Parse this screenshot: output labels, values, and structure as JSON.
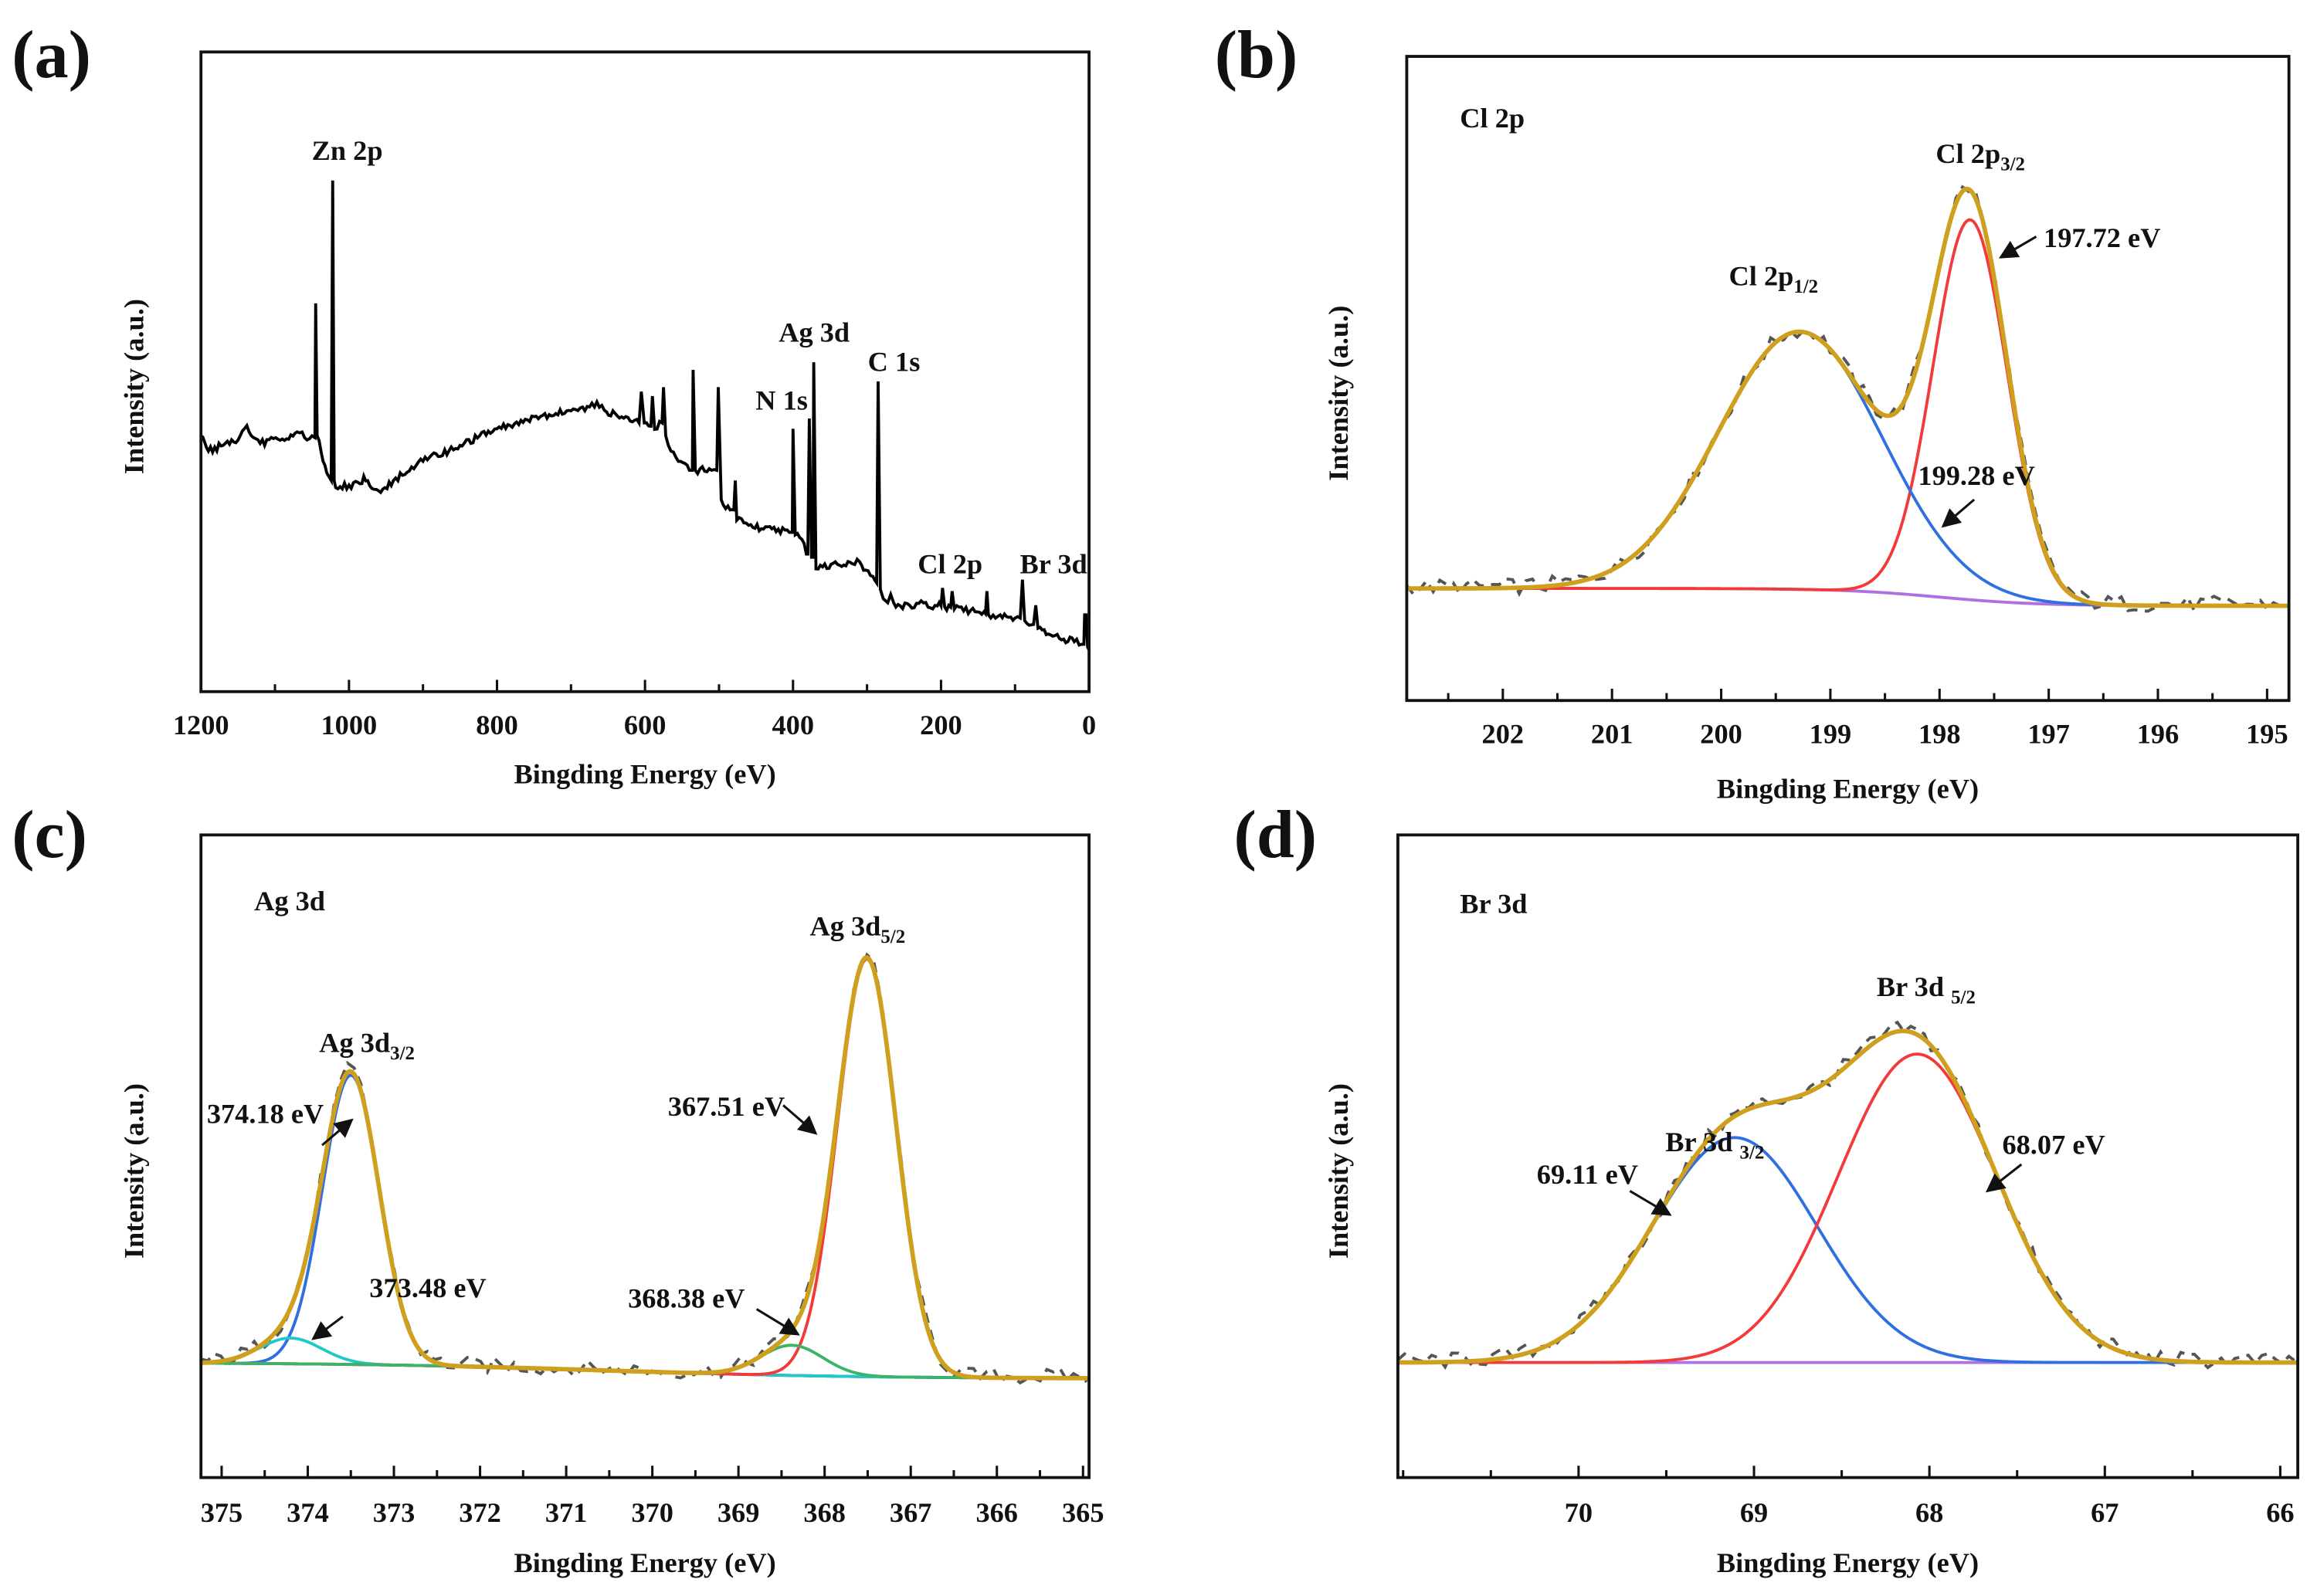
{
  "chart_data": [
    {
      "type": "line",
      "panel_label": "(a)",
      "xlabel": "Bingding Energy (eV)",
      "ylabel": "Intensity (a.u.)",
      "xlim": [
        1200,
        0
      ],
      "ylim": [
        0,
        1
      ],
      "xticks": [
        "1200",
        "1000",
        "800",
        "600",
        "400",
        "200",
        "0"
      ],
      "xtick_values": [
        1200,
        1000,
        800,
        600,
        400,
        200,
        0
      ],
      "annotations": [
        {
          "text": "Zn 2p"
        },
        {
          "text": "Ag 3d"
        },
        {
          "text": "C 1s"
        },
        {
          "text": "N 1s"
        },
        {
          "text": "Cl 2p"
        },
        {
          "text": "Br 3d"
        }
      ],
      "series": [
        {
          "name": "survey",
          "color": "#000000",
          "points": [
            [
              1200,
              0.4
            ],
            [
              1195,
              0.39
            ],
            [
              1190,
              0.376
            ],
            [
              1170,
              0.385
            ],
            [
              1150,
              0.393
            ],
            [
              1138,
              0.416
            ],
            [
              1132,
              0.4
            ],
            [
              1120,
              0.388
            ],
            [
              1090,
              0.395
            ],
            [
              1070,
              0.406
            ],
            [
              1060,
              0.397
            ],
            [
              1050,
              0.4
            ],
            [
              1046,
              0.397
            ],
            [
              1045,
              0.607
            ],
            [
              1043,
              0.4
            ],
            [
              1035,
              0.36
            ],
            [
              1030,
              0.342
            ],
            [
              1024,
              0.33
            ],
            [
              1022,
              0.799
            ],
            [
              1020,
              0.33
            ],
            [
              1018,
              0.319
            ],
            [
              1000,
              0.323
            ],
            [
              985,
              0.325
            ],
            [
              980,
              0.337
            ],
            [
              972,
              0.322
            ],
            [
              960,
              0.314
            ],
            [
              940,
              0.33
            ],
            [
              900,
              0.36
            ],
            [
              850,
              0.385
            ],
            [
              800,
              0.411
            ],
            [
              750,
              0.43
            ],
            [
              700,
              0.439
            ],
            [
              675,
              0.445
            ],
            [
              665,
              0.453
            ],
            [
              655,
              0.44
            ],
            [
              620,
              0.423
            ],
            [
              608,
              0.42
            ],
            [
              605,
              0.469
            ],
            [
              601,
              0.42
            ],
            [
              592,
              0.415
            ],
            [
              590,
              0.462
            ],
            [
              587,
              0.41
            ],
            [
              577,
              0.42
            ],
            [
              575,
              0.476
            ],
            [
              572,
              0.4
            ],
            [
              565,
              0.376
            ],
            [
              555,
              0.36
            ],
            [
              540,
              0.346
            ],
            [
              536,
              0.346
            ],
            [
              535,
              0.503
            ],
            [
              532,
              0.346
            ],
            [
              510,
              0.346
            ],
            [
              503,
              0.346
            ],
            [
              501,
              0.476
            ],
            [
              497,
              0.3
            ],
            [
              485,
              0.284
            ],
            [
              480,
              0.284
            ],
            [
              478,
              0.33
            ],
            [
              476,
              0.268
            ],
            [
              460,
              0.26
            ],
            [
              440,
              0.254
            ],
            [
              420,
              0.254
            ],
            [
              405,
              0.249
            ],
            [
              401,
              0.249
            ],
            [
              400,
              0.411
            ],
            [
              397,
              0.245
            ],
            [
              388,
              0.238
            ],
            [
              382,
              0.215
            ],
            [
              380,
              0.215
            ],
            [
              378,
              0.427
            ],
            [
              375,
              0.21
            ],
            [
              373,
              0.21
            ],
            [
              372,
              0.515
            ],
            [
              369,
              0.192
            ],
            [
              360,
              0.195
            ],
            [
              340,
              0.199
            ],
            [
              320,
              0.2
            ],
            [
              310,
              0.203
            ],
            [
              302,
              0.19
            ],
            [
              292,
              0.18
            ],
            [
              287,
              0.17
            ],
            [
              285,
              0.485
            ],
            [
              282,
              0.16
            ],
            [
              278,
              0.145
            ],
            [
              272,
              0.139
            ],
            [
              268,
              0.152
            ],
            [
              264,
              0.139
            ],
            [
              255,
              0.134
            ],
            [
              230,
              0.138
            ],
            [
              205,
              0.134
            ],
            [
              200,
              0.134
            ],
            [
              198,
              0.162
            ],
            [
              195,
              0.132
            ],
            [
              187,
              0.132
            ],
            [
              185,
              0.157
            ],
            [
              182,
              0.129
            ],
            [
              160,
              0.127
            ],
            [
              142,
              0.125
            ],
            [
              140,
              0.122
            ],
            [
              138,
              0.157
            ],
            [
              136,
              0.12
            ],
            [
              120,
              0.12
            ],
            [
              100,
              0.115
            ],
            [
              93,
              0.115
            ],
            [
              90,
              0.175
            ],
            [
              87,
              0.111
            ],
            [
              75,
              0.105
            ],
            [
              72,
              0.135
            ],
            [
              69,
              0.099
            ],
            [
              55,
              0.09
            ],
            [
              40,
              0.083
            ],
            [
              20,
              0.078
            ],
            [
              10,
              0.074
            ],
            [
              7,
              0.074
            ],
            [
              6,
              0.12
            ],
            [
              4,
              0.12
            ],
            [
              2,
              0.07
            ],
            [
              0,
              0.065
            ]
          ]
        }
      ]
    },
    {
      "type": "line",
      "panel_label": "(b)",
      "title": "Cl 2p",
      "xlabel": "Bingding Energy (eV)",
      "ylabel": "Intensity (a.u.)",
      "xlim": [
        202.88,
        194.8
      ],
      "ylim": [
        0,
        1
      ],
      "xticks": [
        "202",
        "201",
        "200",
        "199",
        "198",
        "197",
        "196",
        "195"
      ],
      "xtick_values": [
        202,
        201,
        200,
        199,
        198,
        197,
        196,
        195
      ],
      "annotations": [
        {
          "text": "Cl 2p",
          "sub": "3/2"
        },
        {
          "text": "Cl 2p",
          "sub": "1/2"
        },
        {
          "text": "197.72 eV"
        },
        {
          "text": "199.28 eV"
        }
      ],
      "baseline": {
        "left": 0.174,
        "right": 0.147,
        "center": 198.0,
        "width": 0.45
      },
      "components": [
        {
          "name": "Cl 2p3/2",
          "center": 197.72,
          "sigma": 0.34,
          "amplitude": 0.59,
          "color": "#f23a3a"
        },
        {
          "name": "Cl 2p1/2",
          "center": 199.28,
          "sigma": 0.75,
          "amplitude": 0.4,
          "color": "#2f6fe0"
        }
      ],
      "colors": {
        "envelope": "#cf9f1e",
        "baseline": "#b070e0",
        "raw": "#555555"
      }
    },
    {
      "type": "line",
      "panel_label": "(c)",
      "title": "Ag 3d",
      "xlabel": "Bingding Energy (eV)",
      "ylabel": "Intensity (a.u.)",
      "xlim": [
        375.24,
        364.93
      ],
      "ylim": [
        0,
        1
      ],
      "xticks": [
        "375",
        "374",
        "373",
        "372",
        "371",
        "370",
        "369",
        "368",
        "367",
        "366",
        "365"
      ],
      "xtick_values": [
        375,
        374,
        373,
        372,
        371,
        370,
        369,
        368,
        367,
        366,
        365
      ],
      "annotations": [
        {
          "text": "Ag 3d",
          "sub": "3/2"
        },
        {
          "text": "Ag 3d",
          "sub": "5/2"
        },
        {
          "text": "374.18 eV"
        },
        {
          "text": "373.48 eV"
        },
        {
          "text": "367.51 eV"
        },
        {
          "text": "368.38 eV"
        }
      ],
      "baseline": {
        "left": 0.179,
        "right": 0.154,
        "center": 370.5,
        "width": 1.5
      },
      "components": [
        {
          "name": "Ag 3d3/2 main",
          "center": 373.5,
          "sigma": 0.33,
          "amplitude": 0.45,
          "color": "#2f6fe0"
        },
        {
          "name": "Ag 3d3/2 minor",
          "center": 374.2,
          "sigma": 0.36,
          "amplitude": 0.04,
          "color": "#22c8c8"
        },
        {
          "name": "Ag 3d5/2 main",
          "center": 367.51,
          "sigma": 0.34,
          "amplitude": 0.65,
          "color": "#f23a3a"
        },
        {
          "name": "Ag 3d5/2 minor",
          "center": 368.38,
          "sigma": 0.36,
          "amplitude": 0.047,
          "color": "#3db36a"
        }
      ],
      "colors": {
        "envelope": "#cf9f1e",
        "baseline": "#b070e0",
        "raw": "#555555"
      }
    },
    {
      "type": "line",
      "panel_label": "(d)",
      "title": "Br 3d",
      "xlabel": "Bingding Energy (eV)",
      "ylabel": "Intensity (a.u.)",
      "xlim": [
        71.03,
        65.9
      ],
      "ylim": [
        0,
        1
      ],
      "xticks": [
        "70",
        "69",
        "68",
        "67",
        "66"
      ],
      "xtick_values": [
        70,
        69,
        68,
        67,
        66
      ],
      "annotations": [
        {
          "text": "Br 3d ",
          "sub": "5/2"
        },
        {
          "text": "Br 3d ",
          "sub": "3/2"
        },
        {
          "text": "69.11 eV"
        },
        {
          "text": "68.07 eV"
        }
      ],
      "baseline": {
        "left": 0.179,
        "right": 0.179,
        "center": 68.5,
        "width": 0.5
      },
      "components": [
        {
          "name": "Br 3d3/2",
          "center": 69.11,
          "sigma": 0.47,
          "amplitude": 0.35,
          "color": "#2f6fe0"
        },
        {
          "name": "Br 3d5/2",
          "center": 68.07,
          "sigma": 0.45,
          "amplitude": 0.48,
          "color": "#f23a3a"
        }
      ],
      "colors": {
        "envelope": "#cf9f1e",
        "baseline": "#b070e0",
        "raw": "#555555"
      }
    }
  ]
}
